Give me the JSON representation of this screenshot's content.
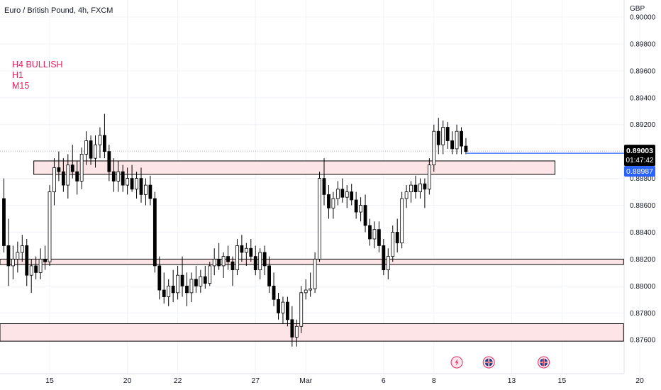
{
  "header": {
    "symbol_title": "Euro / British Pound, 4h, FXCM"
  },
  "annotations": {
    "notes": [
      "H4 BULLISH",
      "H1",
      "M15"
    ]
  },
  "price_axis": {
    "unit": "GBP",
    "ticks": [
      "0.90000",
      "0.89800",
      "0.89600",
      "0.89400",
      "0.89200",
      "0.88800",
      "0.88600",
      "0.88400",
      "0.88200",
      "0.88000",
      "0.87800",
      "0.87600"
    ],
    "current_price": "0.89003",
    "countdown": "01:47:42",
    "bid_price": "0.88987"
  },
  "time_axis": {
    "ticks": [
      {
        "label": "15",
        "bar": 10
      },
      {
        "label": "20",
        "bar": 27
      },
      {
        "label": "22",
        "bar": 38
      },
      {
        "label": "27",
        "bar": 55
      },
      {
        "label": "Mar",
        "bar": 66
      },
      {
        "label": "6",
        "bar": 83
      },
      {
        "label": "8",
        "bar": 94
      },
      {
        "label": "13",
        "bar": 111
      },
      {
        "label": "15",
        "bar": 122
      },
      {
        "label": "20",
        "bar": 139
      }
    ]
  },
  "event_icons": [
    {
      "name": "flash-event-icon",
      "bar": 99
    },
    {
      "name": "uk-flag-event-icon",
      "bar": 106
    },
    {
      "name": "uk-flag-event-icon",
      "bar": 118
    }
  ],
  "colors": {
    "up_body": "#ffffff",
    "down_body": "#000000",
    "wick": "#000000",
    "zone_fill": "#fde4e6",
    "zone_border": "#000000",
    "price_line": "#2962ff",
    "current_label": "#000000",
    "bid_label": "#2962ff",
    "note_text": "#e0245e",
    "grid": "#f0f3fa"
  },
  "chart_data": {
    "type": "candlestick",
    "title": "Euro / British Pound, 4h, FXCM",
    "ylabel": "GBP",
    "ylim": [
      0.8748,
      0.901
    ],
    "grid": true,
    "current_price": 0.89003,
    "bid_price": 0.88987,
    "zones": [
      {
        "from_bar": 7,
        "to_bar": 120,
        "low": 0.8883,
        "high": 0.8893
      },
      {
        "from_bar": -1,
        "to_bar": 135,
        "low": 0.8816,
        "high": 0.882
      },
      {
        "from_bar": -1,
        "to_bar": 135,
        "low": 0.8759,
        "high": 0.8772
      }
    ],
    "candles": [
      [
        0.8865,
        0.888,
        0.8825,
        0.883
      ],
      [
        0.883,
        0.885,
        0.88,
        0.8815
      ],
      [
        0.8815,
        0.883,
        0.8805,
        0.882
      ],
      [
        0.882,
        0.8833,
        0.881,
        0.8825
      ],
      [
        0.8825,
        0.8838,
        0.8818,
        0.883
      ],
      [
        0.883,
        0.8835,
        0.88,
        0.8808
      ],
      [
        0.8808,
        0.882,
        0.8795,
        0.8815
      ],
      [
        0.8815,
        0.8822,
        0.8805,
        0.881
      ],
      [
        0.881,
        0.8828,
        0.8805,
        0.882
      ],
      [
        0.882,
        0.883,
        0.8812,
        0.8818
      ],
      [
        0.8818,
        0.8875,
        0.8815,
        0.887
      ],
      [
        0.887,
        0.8895,
        0.886,
        0.8888
      ],
      [
        0.8888,
        0.89,
        0.8878,
        0.8885
      ],
      [
        0.8885,
        0.8895,
        0.887,
        0.8875
      ],
      [
        0.8875,
        0.8898,
        0.8865,
        0.889
      ],
      [
        0.889,
        0.8905,
        0.888,
        0.8885
      ],
      [
        0.8885,
        0.8893,
        0.8868,
        0.8878
      ],
      [
        0.8878,
        0.8903,
        0.8872,
        0.8898
      ],
      [
        0.8898,
        0.8915,
        0.889,
        0.8908
      ],
      [
        0.8908,
        0.8912,
        0.889,
        0.8895
      ],
      [
        0.8895,
        0.8912,
        0.8888,
        0.8905
      ],
      [
        0.8905,
        0.8918,
        0.8895,
        0.8912
      ],
      [
        0.8912,
        0.8928,
        0.8895,
        0.89
      ],
      [
        0.89,
        0.8905,
        0.8878,
        0.8885
      ],
      [
        0.8885,
        0.8895,
        0.887,
        0.8878
      ],
      [
        0.8878,
        0.8893,
        0.887,
        0.8885
      ],
      [
        0.8885,
        0.889,
        0.887,
        0.8875
      ],
      [
        0.8875,
        0.8888,
        0.8868,
        0.888
      ],
      [
        0.888,
        0.889,
        0.887,
        0.8872
      ],
      [
        0.8872,
        0.8885,
        0.8865,
        0.888
      ],
      [
        0.888,
        0.8888,
        0.8862,
        0.8868
      ],
      [
        0.8868,
        0.888,
        0.886,
        0.8875
      ],
      [
        0.8875,
        0.8882,
        0.886,
        0.8865
      ],
      [
        0.8865,
        0.887,
        0.881,
        0.8815
      ],
      [
        0.8815,
        0.8822,
        0.879,
        0.8797
      ],
      [
        0.8797,
        0.881,
        0.8787,
        0.8792
      ],
      [
        0.8792,
        0.8805,
        0.8785,
        0.88
      ],
      [
        0.88,
        0.8812,
        0.8788,
        0.8795
      ],
      [
        0.8795,
        0.8815,
        0.879,
        0.8808
      ],
      [
        0.8808,
        0.8822,
        0.8792,
        0.88
      ],
      [
        0.88,
        0.881,
        0.8785,
        0.8795
      ],
      [
        0.8795,
        0.881,
        0.8788,
        0.8805
      ],
      [
        0.8805,
        0.8815,
        0.8795,
        0.88
      ],
      [
        0.88,
        0.8812,
        0.8795,
        0.8807
      ],
      [
        0.8807,
        0.8815,
        0.8798,
        0.8802
      ],
      [
        0.8802,
        0.8818,
        0.88,
        0.8815
      ],
      [
        0.8815,
        0.8828,
        0.8808,
        0.882
      ],
      [
        0.882,
        0.8832,
        0.8812,
        0.8815
      ],
      [
        0.8815,
        0.8825,
        0.8806,
        0.8822
      ],
      [
        0.8822,
        0.883,
        0.8812,
        0.8818
      ],
      [
        0.8818,
        0.8822,
        0.88,
        0.8812
      ],
      [
        0.8812,
        0.8835,
        0.8808,
        0.883
      ],
      [
        0.883,
        0.8838,
        0.8818,
        0.8825
      ],
      [
        0.8825,
        0.8832,
        0.8815,
        0.8828
      ],
      [
        0.8828,
        0.8835,
        0.8818,
        0.8822
      ],
      [
        0.8822,
        0.883,
        0.8808,
        0.8812
      ],
      [
        0.8812,
        0.8828,
        0.8805,
        0.8825
      ],
      [
        0.8825,
        0.883,
        0.8808,
        0.8815
      ],
      [
        0.8815,
        0.8822,
        0.8795,
        0.88
      ],
      [
        0.88,
        0.881,
        0.8785,
        0.879
      ],
      [
        0.879,
        0.8795,
        0.8775,
        0.878
      ],
      [
        0.878,
        0.8792,
        0.8772,
        0.8788
      ],
      [
        0.8788,
        0.8792,
        0.877,
        0.8775
      ],
      [
        0.8775,
        0.8785,
        0.8755,
        0.8762
      ],
      [
        0.8762,
        0.8775,
        0.8755,
        0.877
      ],
      [
        0.877,
        0.88,
        0.8765,
        0.8795
      ],
      [
        0.8795,
        0.8805,
        0.879,
        0.8797
      ],
      [
        0.8797,
        0.881,
        0.8792,
        0.8798
      ],
      [
        0.8798,
        0.8825,
        0.8795,
        0.882
      ],
      [
        0.882,
        0.8885,
        0.8818,
        0.888
      ],
      [
        0.888,
        0.8895,
        0.886,
        0.8868
      ],
      [
        0.8868,
        0.8875,
        0.885,
        0.8858
      ],
      [
        0.8858,
        0.887,
        0.885,
        0.8865
      ],
      [
        0.8865,
        0.8878,
        0.886,
        0.8872
      ],
      [
        0.8872,
        0.888,
        0.8862,
        0.8866
      ],
      [
        0.8866,
        0.8875,
        0.8858,
        0.887
      ],
      [
        0.887,
        0.8876,
        0.886,
        0.8864
      ],
      [
        0.8864,
        0.887,
        0.885,
        0.8855
      ],
      [
        0.8855,
        0.8866,
        0.8848,
        0.886
      ],
      [
        0.886,
        0.8868,
        0.884,
        0.8845
      ],
      [
        0.8845,
        0.885,
        0.883,
        0.8835
      ],
      [
        0.8835,
        0.8848,
        0.8828,
        0.8842
      ],
      [
        0.8842,
        0.8848,
        0.8825,
        0.883
      ],
      [
        0.883,
        0.8835,
        0.8808,
        0.8812
      ],
      [
        0.8812,
        0.8828,
        0.8805,
        0.8822
      ],
      [
        0.8822,
        0.8845,
        0.8818,
        0.884
      ],
      [
        0.884,
        0.885,
        0.8825,
        0.8832
      ],
      [
        0.8832,
        0.887,
        0.8828,
        0.8865
      ],
      [
        0.8865,
        0.8875,
        0.8858,
        0.887
      ],
      [
        0.887,
        0.8878,
        0.8862,
        0.8875
      ],
      [
        0.8875,
        0.8882,
        0.8865,
        0.887
      ],
      [
        0.887,
        0.888,
        0.8865,
        0.8876
      ],
      [
        0.8876,
        0.888,
        0.8858,
        0.8872
      ],
      [
        0.8872,
        0.8895,
        0.8868,
        0.889
      ],
      [
        0.889,
        0.892,
        0.8885,
        0.8915
      ],
      [
        0.8915,
        0.8925,
        0.8898,
        0.8905
      ],
      [
        0.8905,
        0.8923,
        0.8898,
        0.8918
      ],
      [
        0.8918,
        0.8922,
        0.8902,
        0.8908
      ],
      [
        0.8908,
        0.8915,
        0.8898,
        0.8902
      ],
      [
        0.8902,
        0.892,
        0.8898,
        0.8915
      ],
      [
        0.8915,
        0.8918,
        0.8898,
        0.8904
      ],
      [
        0.8904,
        0.891,
        0.8898,
        0.89
      ]
    ]
  }
}
